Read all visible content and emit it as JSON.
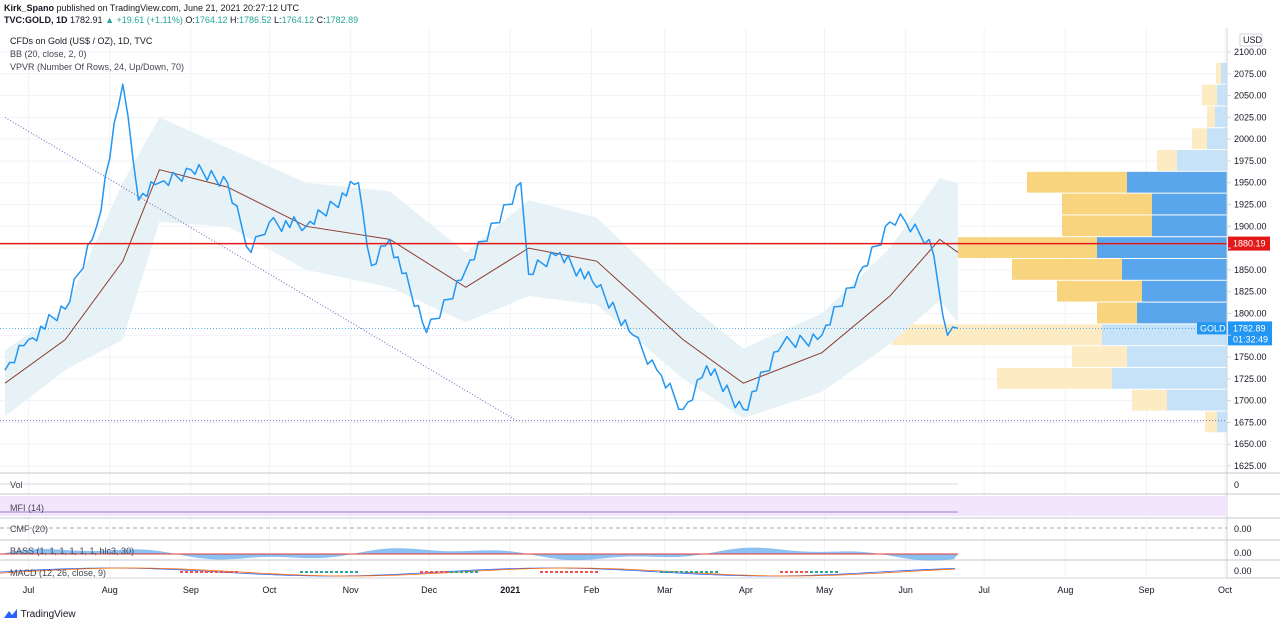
{
  "header": {
    "author": "Kirk_Spano",
    "published": "published on TradingView.com, June 21, 2021 20:27:12 UTC",
    "symbol": "TVC:GOLD, 1D",
    "last": "1782.91",
    "change": "▲ +19.61 (+1.11%)",
    "o_label": "O:",
    "o": "1764.12",
    "h_label": "H:",
    "h": "1786.52",
    "l_label": "L:",
    "l": "1764.12",
    "c_label": "C:",
    "c": "1782.89"
  },
  "legend": {
    "title": "CFDs on Gold (US$ / OZ), 1D, TVC",
    "bb": "BB (20, close, 2, 0)",
    "vpvr": "VPVR (Number Of Rows, 24, Up/Down, 70)"
  },
  "indicators": {
    "vol": "Vol",
    "mfi": "MFI (14)",
    "cmf": "CMF (20)",
    "bass": "BASS (1, 1, 1, 1, 1, 1, hlc3, 30)",
    "macd": "MACD (12, 26, close, 9)",
    "vol_value": "0",
    "cmf_value": "0.00",
    "bass_value": "0.00",
    "macd_value": "0.00"
  },
  "price_axis": {
    "currency": "USD",
    "ticks": [
      "2100.00",
      "2075.00",
      "2050.00",
      "2025.00",
      "2000.00",
      "1975.00",
      "1950.00",
      "1925.00",
      "1900.00",
      "1875.00",
      "1850.00",
      "1825.00",
      "1800.00",
      "1775.00",
      "1750.00",
      "1725.00",
      "1700.00",
      "1675.00",
      "1650.00",
      "1625.00"
    ],
    "hline_label": "1880.19",
    "last_symbol": "GOLD",
    "last_value": "1782.89",
    "countdown": "01:32:49"
  },
  "time_axis": {
    "ticks": [
      "Jul",
      "Aug",
      "Sep",
      "Oct",
      "Nov",
      "Dec",
      "2021",
      "Feb",
      "Mar",
      "Apr",
      "May",
      "Jun",
      "Jul",
      "Aug",
      "Sep",
      "Oct"
    ]
  },
  "footer": {
    "brand": "TradingView"
  },
  "colors": {
    "price": "#2196f3",
    "basis": "#8d3b32",
    "band_fill": "#e6f2f5",
    "hline": "#e31919",
    "trend": "#7e57c2",
    "vp_up": "#5aa6ec",
    "vp_down": "#f9d47e",
    "vp_up_light": "#c6e2f8",
    "vp_down_light": "#fdecc3",
    "mfi_band": "#f3e5fb"
  },
  "chart_data": {
    "type": "line",
    "symbol": "TVC:GOLD",
    "interval": "1D",
    "ylim": [
      1625,
      2100
    ],
    "x_ticks": [
      "Jul",
      "Aug",
      "Sep",
      "Oct",
      "Nov",
      "Dec",
      "2021",
      "Feb",
      "Mar",
      "Apr",
      "May",
      "Jun"
    ],
    "horizontal_line": 1880.19,
    "last_price": 1782.89,
    "trendline": [
      {
        "x": "2020-06-22",
        "y": 2025
      },
      {
        "x": "2021-01-04",
        "y": 1676
      }
    ],
    "series": [
      {
        "kind": "close",
        "dates": [
          "2020-06-22",
          "2020-07-01",
          "2020-07-15",
          "2020-07-27",
          "2020-08-06",
          "2020-08-12",
          "2020-08-20",
          "2020-09-01",
          "2020-09-15",
          "2020-09-24",
          "2020-10-01",
          "2020-10-15",
          "2020-11-04",
          "2020-11-09",
          "2020-11-16",
          "2020-11-30",
          "2020-12-15",
          "2021-01-05",
          "2021-01-08",
          "2021-01-20",
          "2021-02-03",
          "2021-02-17",
          "2021-02-26",
          "2021-03-08",
          "2021-03-17",
          "2021-03-31",
          "2021-04-15",
          "2021-04-30",
          "2021-05-14",
          "2021-05-26",
          "2021-06-01",
          "2021-06-10",
          "2021-06-17",
          "2021-06-21"
        ],
        "values": [
          1735,
          1770,
          1805,
          1900,
          2063,
          1930,
          1950,
          1965,
          1950,
          1870,
          1905,
          1900,
          1950,
          1855,
          1885,
          1778,
          1850,
          1950,
          1845,
          1870,
          1830,
          1775,
          1735,
          1690,
          1740,
          1690,
          1765,
          1775,
          1845,
          1905,
          1905,
          1885,
          1775,
          1783
        ]
      },
      {
        "kind": "bb_basis",
        "dates": [
          "2020-06-22",
          "2020-07-15",
          "2020-08-06",
          "2020-08-20",
          "2020-09-15",
          "2020-10-15",
          "2020-11-16",
          "2020-12-15",
          "2021-01-08",
          "2021-02-03",
          "2021-03-08",
          "2021-03-31",
          "2021-04-30",
          "2021-05-26",
          "2021-06-14",
          "2021-06-21"
        ],
        "values": [
          1720,
          1770,
          1860,
          1965,
          1945,
          1900,
          1885,
          1830,
          1875,
          1860,
          1770,
          1720,
          1755,
          1820,
          1885,
          1870
        ]
      }
    ],
    "volume_profile": {
      "rows": [
        1675,
        1700,
        1725,
        1750,
        1775,
        1800,
        1825,
        1850,
        1875,
        1900,
        1925,
        1950,
        1975,
        2000,
        2025,
        2050,
        2075
      ],
      "up": [
        10,
        60,
        115,
        100,
        125,
        90,
        85,
        105,
        130,
        75,
        75,
        100,
        50,
        20,
        12,
        10,
        6
      ],
      "down": [
        12,
        35,
        115,
        55,
        210,
        40,
        85,
        110,
        140,
        90,
        90,
        100,
        20,
        15,
        8,
        15,
        5
      ]
    }
  }
}
